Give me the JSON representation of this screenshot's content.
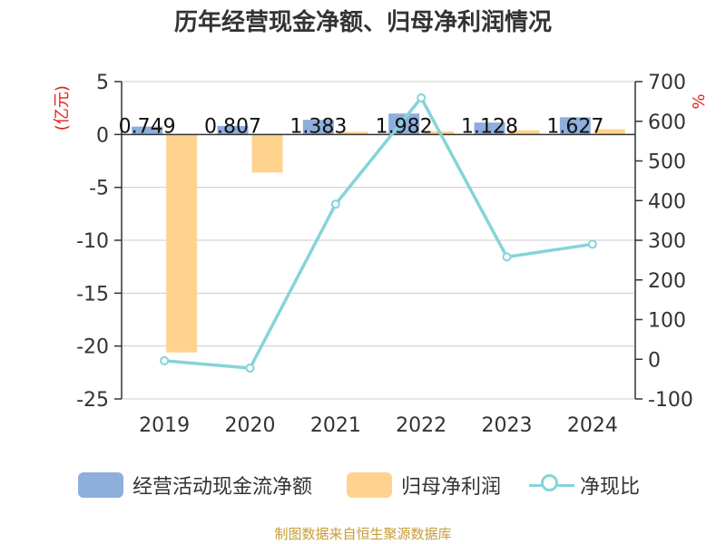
{
  "title": "历年经营现金净额、归母净利润情况",
  "source": "制图数据来自恒生聚源数据库",
  "chart_data": {
    "type": "bar",
    "categories": [
      "2019",
      "2020",
      "2021",
      "2022",
      "2023",
      "2024"
    ],
    "series": [
      {
        "name": "经营活动现金流净额",
        "type": "bar",
        "axis": "left",
        "values": [
          0.749,
          0.807,
          1.383,
          1.982,
          1.128,
          1.627
        ],
        "labels": [
          "0.749",
          "0.807",
          "1.383",
          "1.982",
          "1.128",
          "1.627"
        ],
        "color": "#8eaedb"
      },
      {
        "name": "归母净利润",
        "type": "bar",
        "axis": "left",
        "values": [
          -20.6,
          -3.6,
          0.25,
          0.3,
          0.4,
          0.5
        ],
        "color": "#ffd38d"
      },
      {
        "name": "净现比",
        "type": "line",
        "axis": "right",
        "values": [
          -3.6,
          -22.4,
          391,
          659,
          258,
          290
        ],
        "color": "#85d4d8"
      }
    ],
    "y_left": {
      "label": "(亿元)",
      "min": -25,
      "max": 5,
      "ticks": [
        5,
        0,
        -5,
        -10,
        -15,
        -20,
        -25
      ],
      "tick_labels": [
        "5",
        "0",
        "-5",
        "-10",
        "-15",
        "-20",
        "-25"
      ]
    },
    "y_right": {
      "label": "%",
      "min": -100,
      "max": 700,
      "ticks": [
        700,
        600,
        500,
        400,
        300,
        200,
        100,
        0,
        -100
      ],
      "tick_labels": [
        "700",
        "600",
        "500",
        "400",
        "300",
        "200",
        "100",
        "0",
        "-100"
      ]
    },
    "grid": true,
    "legend": "bottom",
    "axis_label_color": "#e0231c"
  }
}
